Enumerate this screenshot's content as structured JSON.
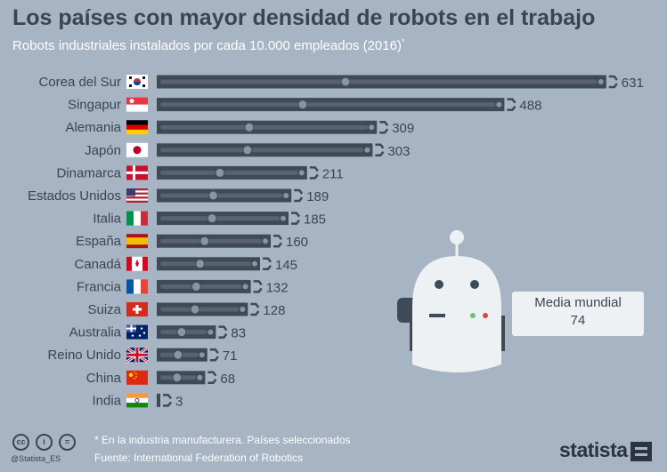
{
  "title": "Los países con mayor densidad de robots en el trabajo",
  "subtitle": "Robots industriales instalados por cada 10.000 empleados (2016)",
  "subtitle_mark": "*",
  "colors": {
    "background": "#a7b4c3",
    "bar": "#3f4a57",
    "text_dark": "#3b4552",
    "robot_body": "#eef1f4",
    "robot_dark": "#3f4a57"
  },
  "chart_data": {
    "type": "bar",
    "orientation": "horizontal",
    "categories": [
      "Corea del Sur",
      "Singapur",
      "Alemania",
      "Japón",
      "Dinamarca",
      "Estados Unidos",
      "Italia",
      "España",
      "Canadá",
      "Francia",
      "Suiza",
      "Australia",
      "Reino Unido",
      "China",
      "India"
    ],
    "values": [
      631,
      488,
      309,
      303,
      211,
      189,
      185,
      160,
      145,
      132,
      128,
      83,
      71,
      68,
      3
    ],
    "value_labels": [
      "631",
      "488",
      "309",
      "303",
      "211",
      "189",
      "185",
      "160",
      "145",
      "132",
      "128",
      "83",
      "71",
      "68",
      "3"
    ],
    "flags": [
      "kr",
      "sg",
      "de",
      "jp",
      "dk",
      "us",
      "it",
      "es",
      "ca",
      "fr",
      "ch",
      "au",
      "gb",
      "cn",
      "in"
    ],
    "bar_style": "robot-arm"
  },
  "callout": {
    "label": "Media mundial",
    "value": "74"
  },
  "footer": {
    "note": "* En la industria manufacturera. Países seleccionados",
    "source": "Fuente: International Federation of Robotics",
    "handle": "@Statista_ES",
    "brand": "statista"
  },
  "license_icons": [
    "cc",
    "i",
    "="
  ]
}
